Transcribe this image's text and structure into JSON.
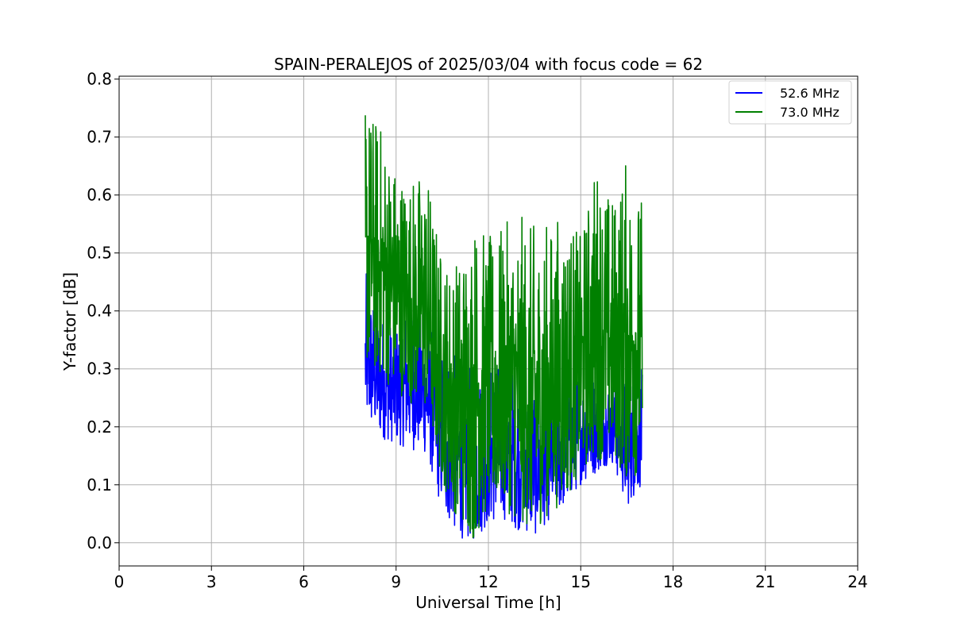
{
  "chart_data": {
    "type": "line",
    "title": "SPAIN-PERALEJOS of 2025/03/04 with focus code = 62",
    "xlabel": "Universal Time [h]",
    "ylabel": "Y-factor [dB]",
    "xlim": [
      0,
      24
    ],
    "ylim": [
      -0.04,
      0.805
    ],
    "xticks": [
      0,
      3,
      6,
      9,
      12,
      15,
      18,
      21,
      24
    ],
    "xtick_labels": [
      "0",
      "3",
      "6",
      "9",
      "12",
      "15",
      "18",
      "21",
      "24"
    ],
    "yticks": [
      0.0,
      0.1,
      0.2,
      0.3,
      0.4,
      0.5,
      0.6,
      0.7,
      0.8
    ],
    "ytick_labels": [
      "0.0",
      "0.1",
      "0.2",
      "0.3",
      "0.4",
      "0.5",
      "0.6",
      "0.7",
      "0.8"
    ],
    "grid": true,
    "legend_position": "top-right",
    "series": [
      {
        "name": "52.6 MHz",
        "color": "#0000ff",
        "x": [
          8.0,
          8.5,
          9.0,
          9.5,
          10.0,
          10.5,
          11.0,
          11.5,
          12.0,
          12.5,
          13.0,
          13.5,
          14.0,
          14.5,
          15.0,
          15.5,
          16.0,
          16.5,
          17.0
        ],
        "min": [
          0.2,
          0.18,
          0.17,
          0.16,
          0.15,
          0.05,
          0.01,
          0.0,
          0.03,
          0.04,
          0.02,
          0.01,
          0.04,
          0.06,
          0.1,
          0.12,
          0.14,
          0.06,
          0.1
        ],
        "max": [
          0.47,
          0.4,
          0.38,
          0.44,
          0.38,
          0.36,
          0.32,
          0.3,
          0.31,
          0.32,
          0.3,
          0.29,
          0.29,
          0.3,
          0.31,
          0.3,
          0.29,
          0.3,
          0.3
        ]
      },
      {
        "name": "73.0 MHz",
        "color": "#008000",
        "x": [
          8.0,
          8.5,
          9.0,
          9.5,
          10.0,
          10.5,
          11.0,
          11.5,
          12.0,
          12.5,
          13.0,
          13.5,
          14.0,
          14.5,
          15.0,
          15.5,
          16.0,
          16.5,
          17.0
        ],
        "min": [
          0.3,
          0.28,
          0.26,
          0.24,
          0.22,
          0.1,
          0.04,
          0.0,
          0.05,
          0.06,
          0.03,
          0.02,
          0.05,
          0.07,
          0.12,
          0.14,
          0.15,
          0.1,
          0.12
        ],
        "max": [
          0.77,
          0.73,
          0.66,
          0.64,
          0.65,
          0.5,
          0.5,
          0.58,
          0.53,
          0.55,
          0.57,
          0.55,
          0.56,
          0.58,
          0.53,
          0.67,
          0.6,
          0.67,
          0.6
        ]
      }
    ]
  }
}
